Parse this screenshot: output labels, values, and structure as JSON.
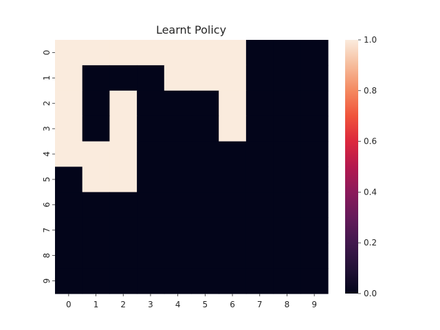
{
  "chart_data": {
    "type": "heatmap",
    "title": "Learnt Policy",
    "xlabel": "",
    "ylabel": "",
    "x_ticks": [
      "0",
      "1",
      "2",
      "3",
      "4",
      "5",
      "6",
      "7",
      "8",
      "9"
    ],
    "y_ticks": [
      "0",
      "1",
      "2",
      "3",
      "4",
      "5",
      "6",
      "7",
      "8",
      "9"
    ],
    "values": [
      [
        1,
        1,
        1,
        1,
        1,
        1,
        1,
        0,
        0,
        0
      ],
      [
        1,
        0,
        0,
        0,
        1,
        1,
        1,
        0,
        0,
        0
      ],
      [
        1,
        0,
        1,
        0,
        0,
        0,
        1,
        0,
        0,
        0
      ],
      [
        1,
        0,
        1,
        0,
        0,
        0,
        1,
        0,
        0,
        0
      ],
      [
        1,
        1,
        1,
        0,
        0,
        0,
        0,
        0,
        0,
        0
      ],
      [
        0,
        1,
        1,
        0,
        0,
        0,
        0,
        0,
        0,
        0
      ],
      [
        0,
        0,
        0,
        0,
        0,
        0,
        0,
        0,
        0,
        0
      ],
      [
        0,
        0,
        0,
        0,
        0,
        0,
        0,
        0,
        0,
        0
      ],
      [
        0,
        0,
        0,
        0,
        0,
        0,
        0,
        0,
        0,
        0
      ],
      [
        0,
        0,
        0,
        0,
        0,
        0,
        0,
        0,
        0,
        0
      ]
    ],
    "vmin": 0,
    "vmax": 1,
    "colormap": "rocket",
    "color_low": "#03051a",
    "color_high": "#faebdd",
    "colorbar": {
      "ticks": [
        0.0,
        0.2,
        0.4,
        0.6,
        0.8,
        1.0
      ],
      "tick_labels": [
        "0.0",
        "0.2",
        "0.4",
        "0.6",
        "0.8",
        "1.0"
      ]
    },
    "grid": false
  }
}
